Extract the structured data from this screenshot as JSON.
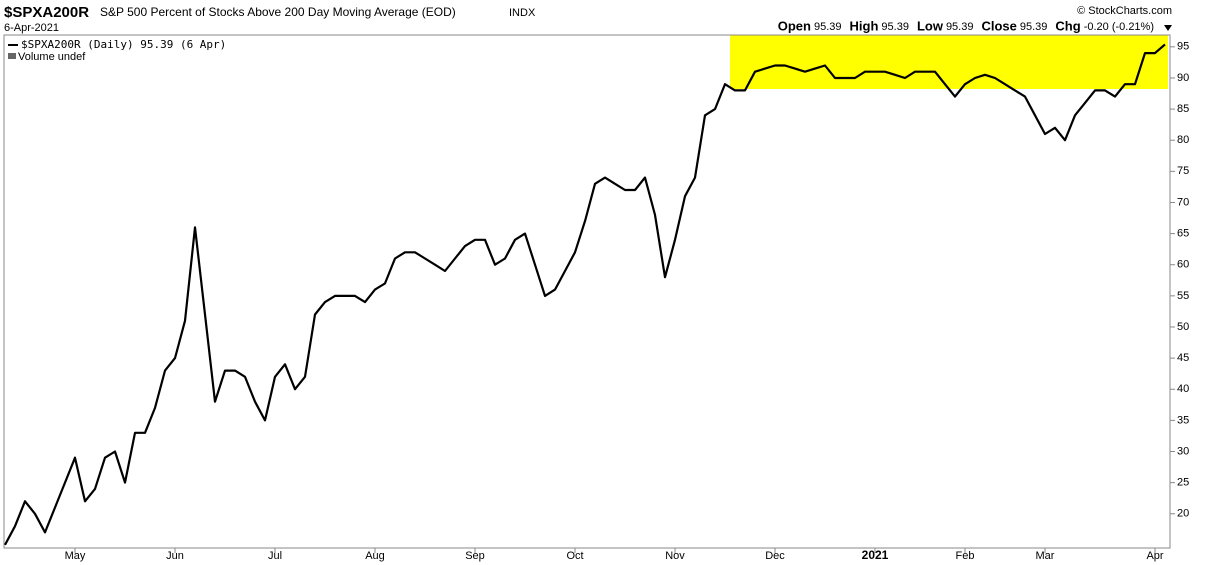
{
  "header": {
    "symbol": "$SPXA200R",
    "description": "S&P 500 Percent of Stocks Above 200 Day Moving Average (EOD)",
    "exchange": "INDX",
    "date": "6-Apr-2021",
    "brand": "© StockCharts.com",
    "quote": [
      {
        "label": "Open",
        "value": "95.39"
      },
      {
        "label": "High",
        "value": "95.39"
      },
      {
        "label": "Low",
        "value": "95.39"
      },
      {
        "label": "Close",
        "value": "95.39"
      },
      {
        "label": "Chg",
        "value": "-0.20 (-0.21%)"
      }
    ],
    "volume": "Volume undef"
  },
  "chart_data": {
    "type": "line",
    "categories": [
      null,
      null,
      null,
      null,
      null,
      null,
      null,
      "May",
      null,
      null,
      null,
      null,
      null,
      null,
      null,
      null,
      null,
      "Jun",
      null,
      null,
      null,
      null,
      null,
      null,
      null,
      null,
      null,
      "Jul",
      null,
      null,
      null,
      null,
      null,
      null,
      null,
      null,
      null,
      "Aug",
      null,
      null,
      null,
      null,
      null,
      null,
      null,
      null,
      null,
      "Sep",
      null,
      null,
      null,
      null,
      null,
      null,
      null,
      null,
      null,
      "Oct",
      null,
      null,
      null,
      null,
      null,
      null,
      null,
      null,
      null,
      "Nov",
      null,
      null,
      null,
      null,
      null,
      null,
      null,
      null,
      null,
      "Dec",
      null,
      null,
      null,
      null,
      null,
      null,
      null,
      null,
      null,
      "2021",
      null,
      null,
      null,
      null,
      null,
      null,
      null,
      null,
      "Feb",
      null,
      null,
      null,
      null,
      null,
      null,
      null,
      "Mar",
      null,
      null,
      null,
      null,
      null,
      null,
      null,
      null,
      null,
      null,
      "Apr",
      null
    ],
    "series": [
      {
        "name": "$SPXA200R (Daily) 95.39 (6 Apr)",
        "color": "#000000",
        "values": [
          15,
          18,
          22,
          20,
          17,
          21,
          25,
          29,
          22,
          24,
          29,
          30,
          25,
          33,
          33,
          37,
          43,
          45,
          51,
          66,
          52,
          38,
          43,
          43,
          42,
          38,
          35,
          42,
          44,
          40,
          42,
          52,
          54,
          55,
          55,
          55,
          54,
          56,
          57,
          61,
          62,
          62,
          61,
          60,
          59,
          61,
          63,
          64,
          64,
          60,
          61,
          64,
          65,
          60,
          55,
          56,
          59,
          62,
          67,
          73,
          74,
          73,
          72,
          72,
          74,
          68,
          58,
          64,
          71,
          74,
          84,
          85,
          89,
          88,
          88,
          91,
          91.5,
          92,
          92,
          91.5,
          91,
          91.5,
          92,
          90,
          90,
          90,
          91,
          91,
          91,
          90.5,
          90,
          91,
          91,
          91,
          89,
          87,
          89,
          90,
          90.5,
          90,
          89,
          88,
          87,
          84,
          81,
          82,
          80,
          84,
          86,
          88,
          88,
          87,
          89,
          89,
          94,
          94,
          95.39
        ]
      }
    ],
    "ylim": [
      14.5,
      96.9
    ],
    "yticks": [
      20,
      25,
      30,
      35,
      40,
      45,
      50,
      55,
      60,
      65,
      70,
      75,
      80,
      85,
      90,
      95
    ],
    "grid": false
  }
}
